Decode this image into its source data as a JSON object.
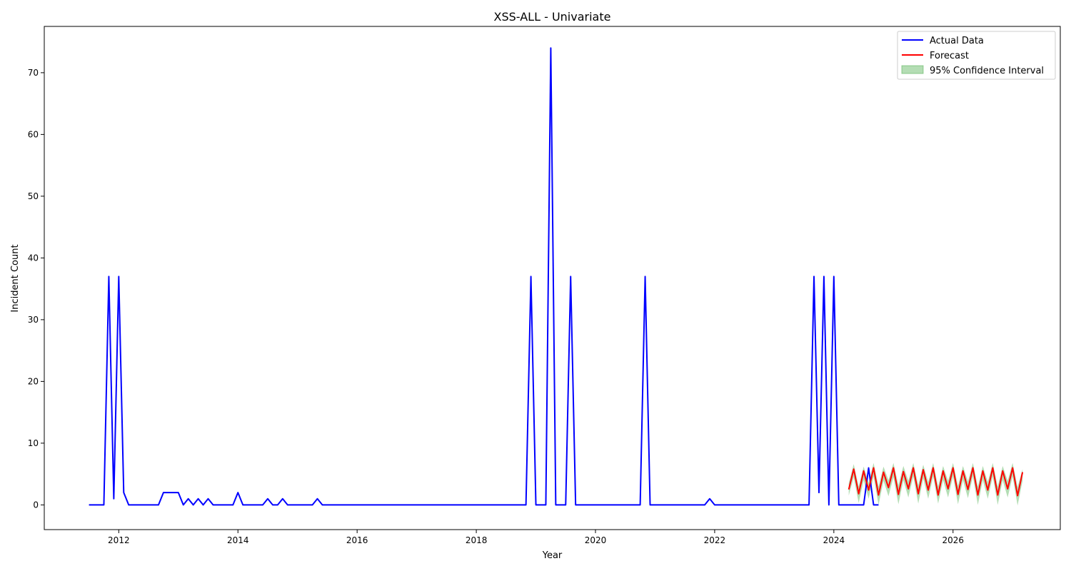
{
  "chart_data": {
    "type": "line",
    "title": "XSS-ALL - Univariate",
    "xlabel": "Year",
    "ylabel": "Incident Count",
    "xlim": [
      2010.75,
      2027.8
    ],
    "ylim": [
      -4,
      77.5
    ],
    "xticks": [
      2012,
      2014,
      2016,
      2018,
      2020,
      2022,
      2024,
      2026
    ],
    "yticks": [
      0,
      10,
      20,
      30,
      40,
      50,
      60,
      70
    ],
    "grid": false,
    "legend_position": "top-right",
    "colors": {
      "actual": "#0000ff",
      "forecast": "#ff0000",
      "ci_fill": "#59b359"
    },
    "legend": [
      {
        "label": "Actual Data",
        "kind": "line",
        "color": "#0000ff"
      },
      {
        "label": "Forecast",
        "kind": "line",
        "color": "#ff0000"
      },
      {
        "label": "95% Confidence Interval",
        "kind": "patch",
        "color": "#59b359"
      }
    ],
    "series": [
      {
        "name": "Actual Data",
        "start": "2011-07",
        "frequency": "monthly",
        "values": [
          0,
          0,
          0,
          0,
          37,
          1,
          37,
          2,
          0,
          0,
          0,
          0,
          0,
          0,
          0,
          2,
          2,
          2,
          2,
          0,
          1,
          0,
          1,
          0,
          1,
          0,
          0,
          0,
          0,
          0,
          2,
          0,
          0,
          0,
          0,
          0,
          1,
          0,
          0,
          1,
          0,
          0,
          0,
          0,
          0,
          0,
          1,
          0,
          0,
          0,
          0,
          0,
          0,
          0,
          0,
          0,
          0,
          0,
          0,
          0,
          0,
          0,
          0,
          0,
          0,
          0,
          0,
          0,
          0,
          0,
          0,
          0,
          0,
          0,
          0,
          0,
          0,
          0,
          0,
          0,
          0,
          0,
          0,
          0,
          0,
          0,
          0,
          0,
          0,
          37,
          0,
          0,
          0,
          74,
          0,
          0,
          0,
          37,
          0,
          0,
          0,
          0,
          0,
          0,
          0,
          0,
          0,
          0,
          0,
          0,
          0,
          0,
          37,
          0,
          0,
          0,
          0,
          0,
          0,
          0,
          0,
          0,
          0,
          0,
          0,
          1,
          0,
          0,
          0,
          0,
          0,
          0,
          0,
          0,
          0,
          0,
          0,
          0,
          0,
          0,
          0,
          0,
          0,
          0,
          0,
          0,
          37,
          2,
          37,
          0,
          37,
          0,
          0,
          0,
          0,
          0,
          0,
          6,
          0,
          0
        ]
      },
      {
        "name": "Forecast",
        "start": "2024-04",
        "frequency": "monthly",
        "values": [
          2.5,
          5.8,
          1.8,
          5.5,
          2.4,
          6.0,
          1.6,
          5.3,
          2.8,
          6.0,
          1.7,
          5.4,
          2.6,
          6.0,
          1.8,
          5.7,
          2.4,
          6.0,
          1.6,
          5.5,
          2.6,
          6.0,
          1.7,
          5.5,
          2.5,
          6.0,
          1.6,
          5.5,
          2.4,
          6.0,
          1.6,
          5.5,
          2.6,
          6.0,
          1.5,
          5.3
        ]
      },
      {
        "name": "95% Confidence Interval",
        "start": "2024-04",
        "frequency": "monthly",
        "lower": [
          1.5,
          4.5,
          0.3,
          4.0,
          1.0,
          4.6,
          0.0,
          3.9,
          1.4,
          4.5,
          0.1,
          4.0,
          1.2,
          4.6,
          0.2,
          4.3,
          1.0,
          4.6,
          0.2,
          4.0,
          1.2,
          4.6,
          0.1,
          4.0,
          1.1,
          4.6,
          0.0,
          4.0,
          1.0,
          4.6,
          0.0,
          4.0,
          1.2,
          4.6,
          -0.1,
          3.9
        ],
        "upper": [
          3.5,
          6.6,
          3.0,
          6.2,
          3.6,
          6.8,
          3.0,
          6.2,
          4.0,
          6.8,
          3.2,
          6.3,
          3.9,
          6.8,
          3.2,
          6.5,
          3.7,
          6.8,
          3.0,
          6.3,
          3.9,
          6.8,
          3.1,
          6.3,
          3.8,
          6.8,
          3.0,
          6.3,
          3.7,
          6.8,
          3.0,
          6.3,
          3.9,
          6.8,
          2.9,
          5.8
        ]
      }
    ]
  }
}
